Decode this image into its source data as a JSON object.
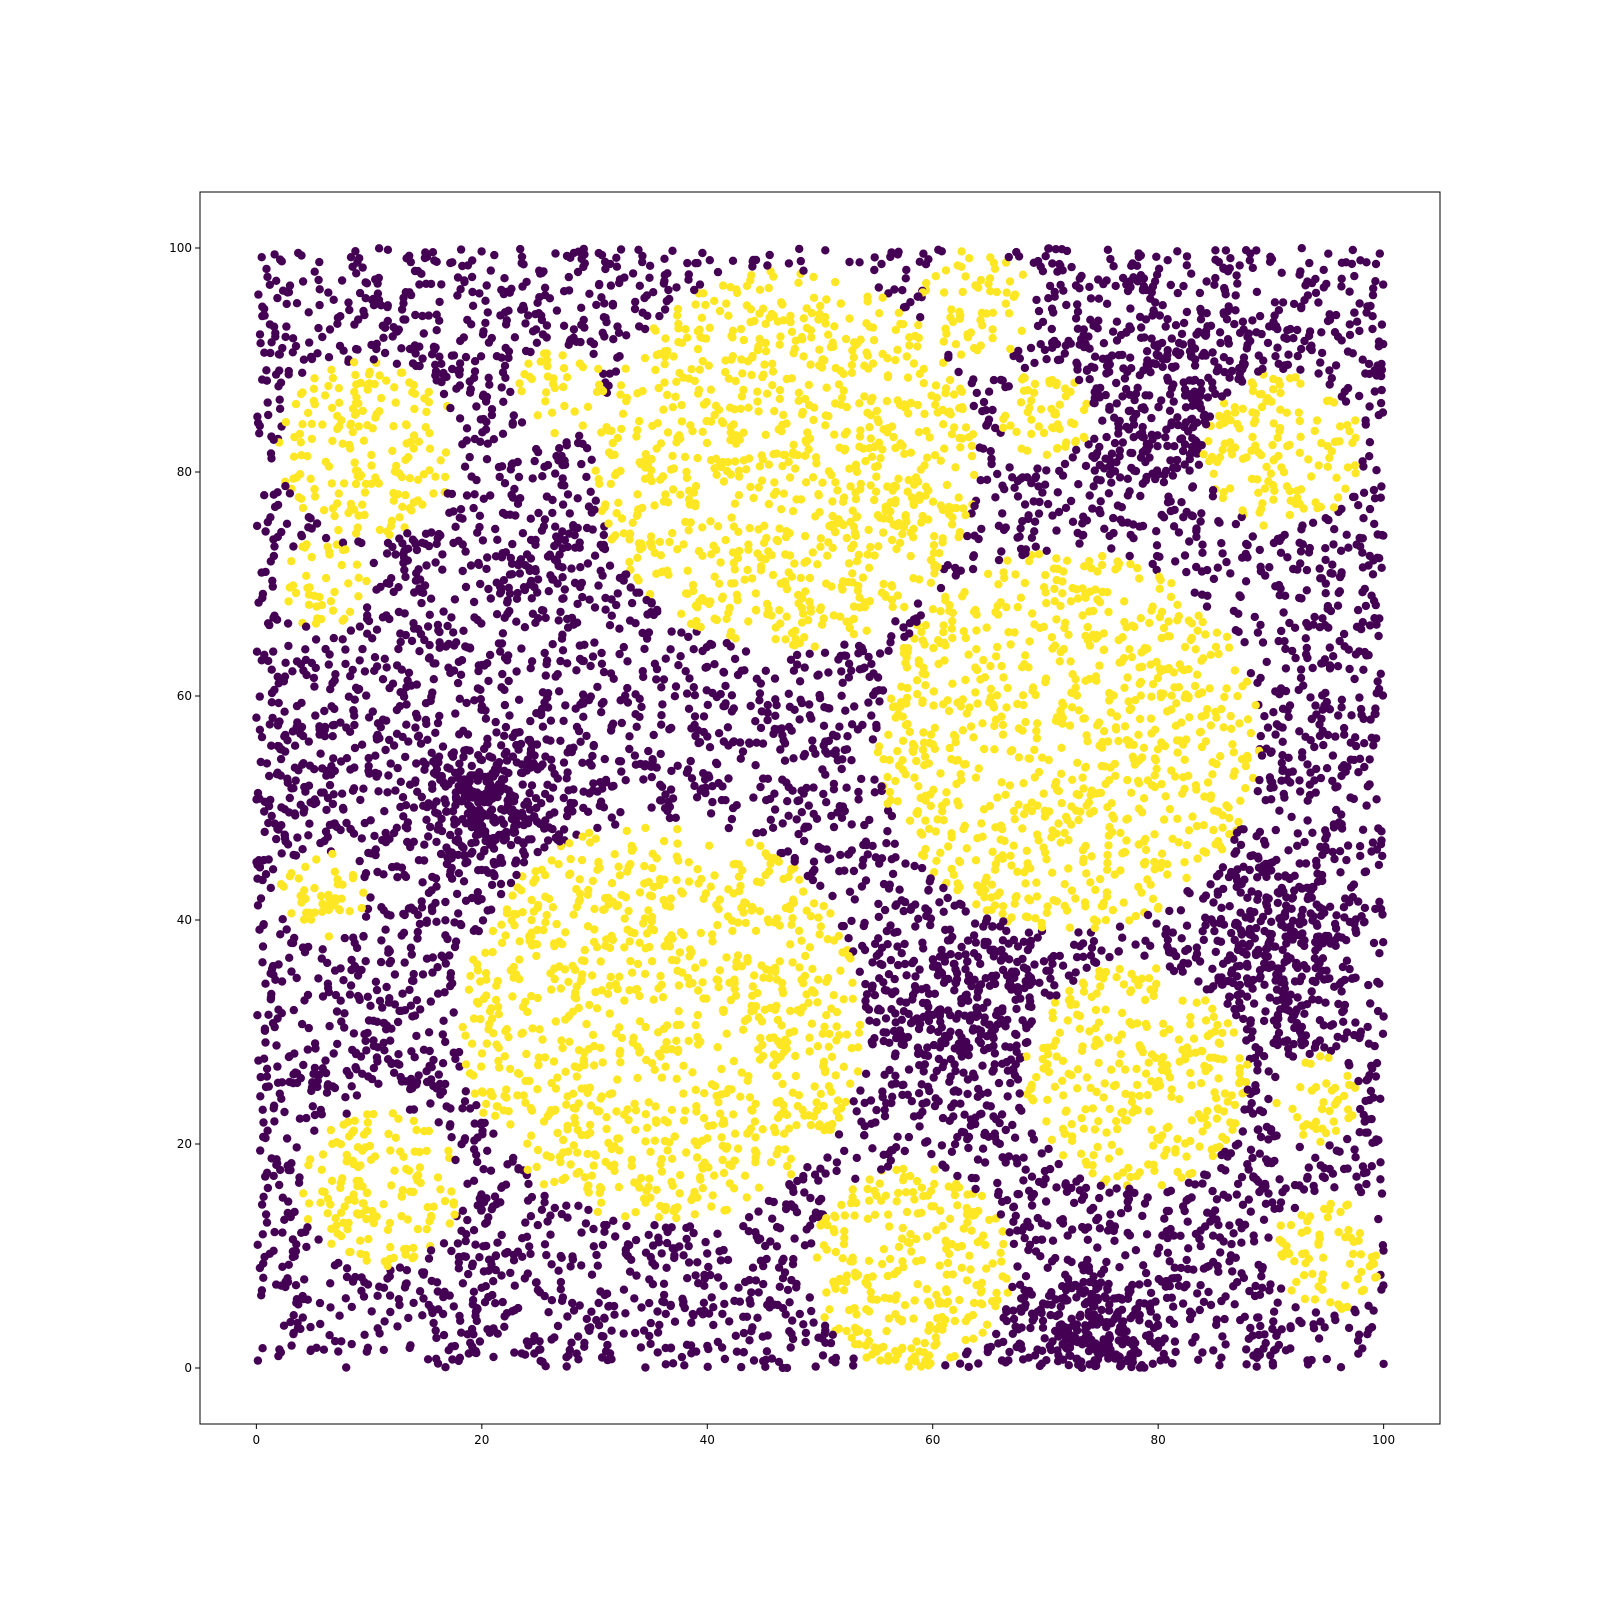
{
  "chart_data": {
    "type": "scatter",
    "title": "",
    "xlabel": "",
    "ylabel": "",
    "xlim": [
      -5,
      105
    ],
    "ylim": [
      -5,
      105
    ],
    "x_ticks": [
      "0",
      "20",
      "40",
      "60",
      "80",
      "100"
    ],
    "y_ticks": [
      "0",
      "20",
      "40",
      "60",
      "80",
      "100"
    ],
    "grid": false,
    "legend": "none",
    "point_domain": {
      "x": [
        0,
        100
      ],
      "y": [
        0,
        100
      ]
    },
    "colors": {
      "class_0": "#440154",
      "class_1": "#fde725"
    },
    "regions_class_1": [
      {
        "cx": 47,
        "cy": 81,
        "r": 17
      },
      {
        "cx": 36,
        "cy": 31,
        "r": 18
      },
      {
        "cx": 72,
        "cy": 56,
        "r": 17
      },
      {
        "cx": 78,
        "cy": 26,
        "r": 10
      },
      {
        "cx": 58,
        "cy": 9,
        "r": 9
      },
      {
        "cx": 10,
        "cy": 82,
        "r": 8
      },
      {
        "cx": 11,
        "cy": 16,
        "r": 7
      },
      {
        "cx": 91,
        "cy": 82,
        "r": 7
      },
      {
        "cx": 64,
        "cy": 95,
        "r": 5
      },
      {
        "cx": 70,
        "cy": 85,
        "r": 4
      },
      {
        "cx": 94,
        "cy": 24,
        "r": 4
      },
      {
        "cx": 95,
        "cy": 10,
        "r": 5
      },
      {
        "cx": 6,
        "cy": 42,
        "r": 4
      },
      {
        "cx": 6,
        "cy": 70,
        "r": 4
      },
      {
        "cx": 27,
        "cy": 87,
        "r": 4
      }
    ],
    "dense_clusters_class_0": [
      {
        "cx": 82,
        "cy": 86,
        "spread": 5
      },
      {
        "cx": 75,
        "cy": 3,
        "spread": 3
      },
      {
        "cx": 63,
        "cy": 32,
        "spread": 5
      },
      {
        "cx": 90,
        "cy": 38,
        "spread": 4
      },
      {
        "cx": 20,
        "cy": 50,
        "spread": 3
      }
    ],
    "n_points": 9000
  }
}
